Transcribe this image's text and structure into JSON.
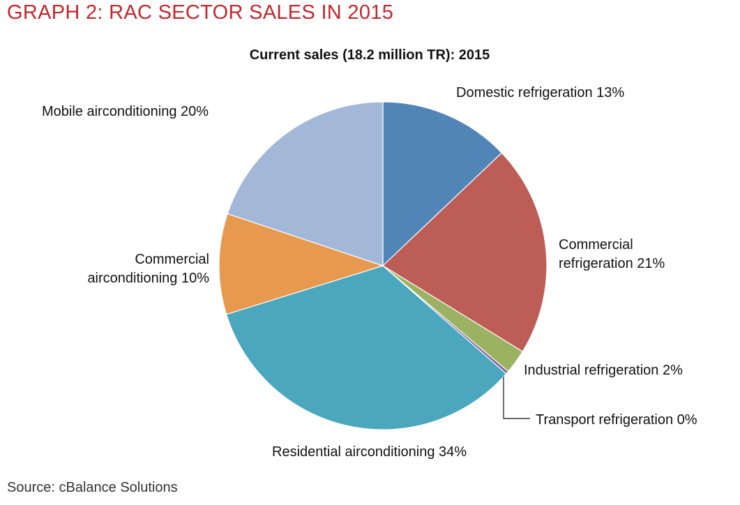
{
  "heading": "GRAPH 2: RAC SECTOR SALES IN 2015",
  "source": "Source: cBalance Solutions",
  "chart_data": {
    "type": "pie",
    "title": "Current sales (18.2 million TR): 2015",
    "start_angle": "12 o'clock",
    "direction": "clockwise",
    "slices": [
      {
        "name": "Domestic refrigeration",
        "value": 13,
        "label": "Domestic refrigeration 13%",
        "color": "#5185b8"
      },
      {
        "name": "Commercial refrigeration",
        "value": 21,
        "label_lines": [
          "Commercial",
          "refrigeration 21%"
        ],
        "color": "#bc5d56"
      },
      {
        "name": "Industrial refrigeration",
        "value": 2.4,
        "label": "Industrial refrigeration 2%",
        "color": "#9bb262"
      },
      {
        "name": "Transport refrigeration",
        "value": 0.3,
        "label": "Transport refrigeration 0%",
        "color": "#8064a2"
      },
      {
        "name": "Residential airconditioning",
        "value": 34,
        "label": "Residential airconditioning 34%",
        "color": "#4aa7bd"
      },
      {
        "name": "Commercial airconditioning",
        "value": 10,
        "label_lines": [
          "Commercial",
          "airconditioning 10%"
        ],
        "color": "#e6994f"
      },
      {
        "name": "Mobile airconditioning",
        "value": 20,
        "label": "Mobile airconditioning 20%",
        "color": "#a3b7d8"
      }
    ]
  }
}
